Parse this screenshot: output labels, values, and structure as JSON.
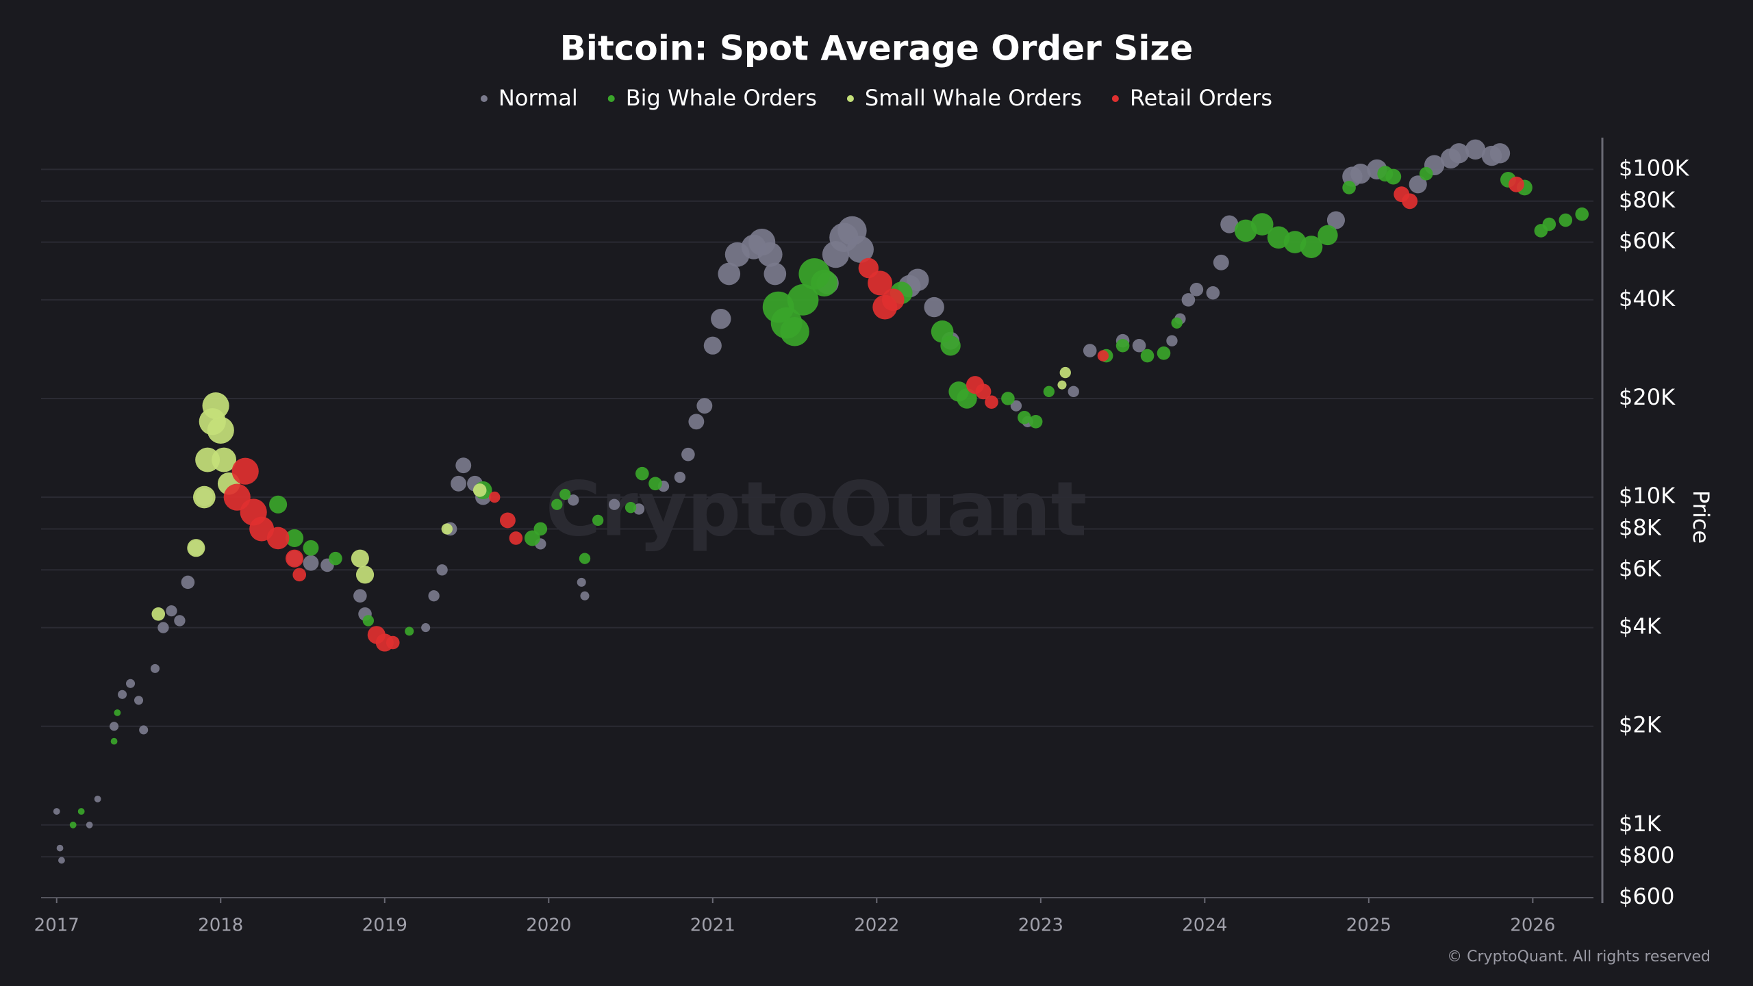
{
  "chart_data": {
    "type": "scatter",
    "title": "Bitcoin: Spot Average Order Size",
    "y_axis_label": "Price",
    "watermark": "CryptoQuant",
    "credit": "© CryptoQuant. All rights reserved",
    "log_y": true,
    "grid": true,
    "xlim": [
      2016.905,
      2026.37
    ],
    "xticks": [
      2017,
      2018,
      2019,
      2020,
      2021,
      2022,
      2023,
      2024,
      2025,
      2026
    ],
    "ylim": [
      600,
      125000
    ],
    "yticks": [
      {
        "value": 600,
        "label": "$600"
      },
      {
        "value": 800,
        "label": "$800"
      },
      {
        "value": 1000,
        "label": "$1K"
      },
      {
        "value": 2000,
        "label": "$2K"
      },
      {
        "value": 4000,
        "label": "$4K"
      },
      {
        "value": 6000,
        "label": "$6K"
      },
      {
        "value": 8000,
        "label": "$8K"
      },
      {
        "value": 10000,
        "label": "$10K"
      },
      {
        "value": 20000,
        "label": "$20K"
      },
      {
        "value": 40000,
        "label": "$40K"
      },
      {
        "value": 60000,
        "label": "$60K"
      },
      {
        "value": 80000,
        "label": "$80K"
      },
      {
        "value": 100000,
        "label": "$100K"
      }
    ],
    "series": [
      {
        "name": "Normal",
        "color": "#7a7a8c",
        "x": [
          2017.0,
          2017.02,
          2017.03,
          2017.2,
          2017.25,
          2017.35,
          2017.4,
          2017.45,
          2017.5,
          2017.53,
          2017.6,
          2017.65,
          2017.7,
          2017.75,
          2017.8,
          2017.85,
          2017.9,
          2018.45,
          2018.55,
          2018.65,
          2018.85,
          2018.88,
          2019.25,
          2019.3,
          2019.35,
          2019.4,
          2019.45,
          2019.48,
          2019.55,
          2019.6,
          2019.95,
          2020.15,
          2020.2,
          2020.22,
          2020.4,
          2020.55,
          2020.7,
          2020.8,
          2020.85,
          2020.9,
          2020.95,
          2021.0,
          2021.05,
          2021.1,
          2021.15,
          2021.25,
          2021.3,
          2021.35,
          2021.38,
          2021.7,
          2021.75,
          2021.8,
          2021.85,
          2021.9,
          2022.2,
          2022.25,
          2022.35,
          2022.45,
          2022.85,
          2022.92,
          2023.2,
          2023.3,
          2023.5,
          2023.6,
          2023.8,
          2023.85,
          2023.9,
          2023.95,
          2024.05,
          2024.1,
          2024.15,
          2024.8,
          2024.9,
          2024.95,
          2025.05,
          2025.3,
          2025.4,
          2025.5,
          2025.55,
          2025.65,
          2025.75,
          2025.8
        ],
        "values": [
          1100,
          850,
          780,
          1000,
          1200,
          2000,
          2500,
          2700,
          2400,
          1950,
          3000,
          4000,
          4500,
          4200,
          5500,
          7000,
          10000,
          6500,
          6300,
          6200,
          5000,
          4400,
          4000,
          5000,
          6000,
          8000,
          11000,
          12500,
          11000,
          10000,
          7200,
          9800,
          5500,
          5000,
          9500,
          9200,
          10800,
          11500,
          13500,
          17000,
          19000,
          29000,
          35000,
          48000,
          55000,
          58000,
          60000,
          55000,
          48000,
          45000,
          55000,
          62000,
          65000,
          57000,
          44000,
          46000,
          38000,
          30000,
          19000,
          17000,
          21000,
          28000,
          30000,
          29000,
          30000,
          35000,
          40000,
          43000,
          42000,
          52000,
          68000,
          70000,
          95000,
          97000,
          100000,
          90000,
          103000,
          108000,
          112000,
          115000,
          110000,
          112000
        ],
        "sizes": [
          3,
          3,
          3,
          3,
          3,
          4,
          4,
          4,
          4,
          4,
          4,
          5,
          5,
          5,
          6,
          7,
          8,
          7,
          7,
          6,
          6,
          6,
          4,
          5,
          5,
          6,
          7,
          7,
          7,
          7,
          5,
          5,
          4,
          4,
          5,
          5,
          5,
          5,
          6,
          7,
          7,
          8,
          9,
          10,
          11,
          11,
          12,
          11,
          10,
          10,
          12,
          13,
          13,
          12,
          10,
          10,
          9,
          8,
          5,
          5,
          5,
          6,
          6,
          6,
          5,
          5,
          6,
          6,
          6,
          7,
          8,
          8,
          9,
          9,
          9,
          8,
          9,
          9,
          9,
          9,
          9,
          9
        ]
      },
      {
        "name": "Big Whale Orders",
        "color": "#3aa52a",
        "x": [
          2017.1,
          2017.15,
          2017.35,
          2017.37,
          2018.35,
          2018.45,
          2018.55,
          2018.7,
          2018.9,
          2019.15,
          2019.6,
          2019.9,
          2019.95,
          2020.05,
          2020.1,
          2020.22,
          2020.3,
          2020.5,
          2020.57,
          2020.65,
          2021.4,
          2021.45,
          2021.5,
          2021.55,
          2021.62,
          2021.68,
          2022.15,
          2022.4,
          2022.45,
          2022.5,
          2022.55,
          2022.8,
          2022.9,
          2022.97,
          2023.05,
          2023.4,
          2023.5,
          2023.65,
          2023.75,
          2023.83,
          2024.25,
          2024.35,
          2024.45,
          2024.55,
          2024.65,
          2024.75,
          2024.88,
          2025.1,
          2025.15,
          2025.35,
          2025.85,
          2025.95,
          2026.05,
          2026.1,
          2026.2,
          2026.3
        ],
        "values": [
          1000,
          1100,
          1800,
          2200,
          9500,
          7500,
          7000,
          6500,
          4200,
          3900,
          10500,
          7500,
          8000,
          9500,
          10200,
          6500,
          8500,
          9300,
          11800,
          11000,
          38000,
          34000,
          32000,
          40000,
          48000,
          45000,
          42000,
          32000,
          29000,
          21000,
          20000,
          20000,
          17500,
          17000,
          21000,
          27000,
          29000,
          27000,
          27500,
          34000,
          65000,
          68000,
          62000,
          60000,
          58000,
          63000,
          88000,
          97000,
          95000,
          97000,
          93000,
          88000,
          65000,
          68000,
          70000,
          73000
        ],
        "sizes": [
          3,
          3,
          3,
          3,
          8,
          8,
          7,
          6,
          5,
          4,
          8,
          7,
          6,
          5,
          5,
          5,
          5,
          5,
          6,
          6,
          14,
          14,
          13,
          14,
          14,
          12,
          10,
          10,
          9,
          9,
          9,
          6,
          6,
          6,
          5,
          6,
          6,
          6,
          6,
          5,
          10,
          10,
          10,
          10,
          10,
          9,
          6,
          7,
          7,
          6,
          7,
          7,
          6,
          6,
          6,
          6
        ]
      },
      {
        "name": "Small Whale Orders",
        "color": "#c4e07a",
        "x": [
          2017.62,
          2017.85,
          2017.9,
          2017.92,
          2017.95,
          2017.97,
          2018.0,
          2018.02,
          2018.05,
          2018.85,
          2018.88,
          2019.38,
          2019.58,
          2023.15,
          2023.13
        ],
        "values": [
          4400,
          7000,
          10000,
          13000,
          17000,
          19000,
          16000,
          13000,
          11000,
          6500,
          5800,
          8000,
          10500,
          24000,
          22000
        ],
        "sizes": [
          6,
          8,
          10,
          11,
          12,
          12,
          12,
          11,
          10,
          8,
          8,
          5,
          6,
          5,
          4
        ]
      },
      {
        "name": "Retail Orders",
        "color": "#e03030",
        "x": [
          2018.1,
          2018.15,
          2018.2,
          2018.25,
          2018.35,
          2018.45,
          2018.48,
          2018.95,
          2019.0,
          2019.05,
          2019.67,
          2019.75,
          2019.8,
          2021.95,
          2022.02,
          2022.05,
          2022.1,
          2022.6,
          2022.65,
          2022.7,
          2023.38,
          2025.2,
          2025.25,
          2025.9
        ],
        "values": [
          10000,
          12000,
          9000,
          8000,
          7500,
          6500,
          5800,
          3800,
          3600,
          3600,
          10000,
          8500,
          7500,
          50000,
          45000,
          38000,
          40000,
          22000,
          21000,
          19500,
          27000,
          84000,
          80000,
          90000
        ],
        "sizes": [
          12,
          12,
          12,
          11,
          10,
          8,
          6,
          8,
          8,
          6,
          5,
          7,
          6,
          9,
          11,
          11,
          10,
          8,
          7,
          6,
          5,
          7,
          7,
          7
        ]
      }
    ]
  }
}
